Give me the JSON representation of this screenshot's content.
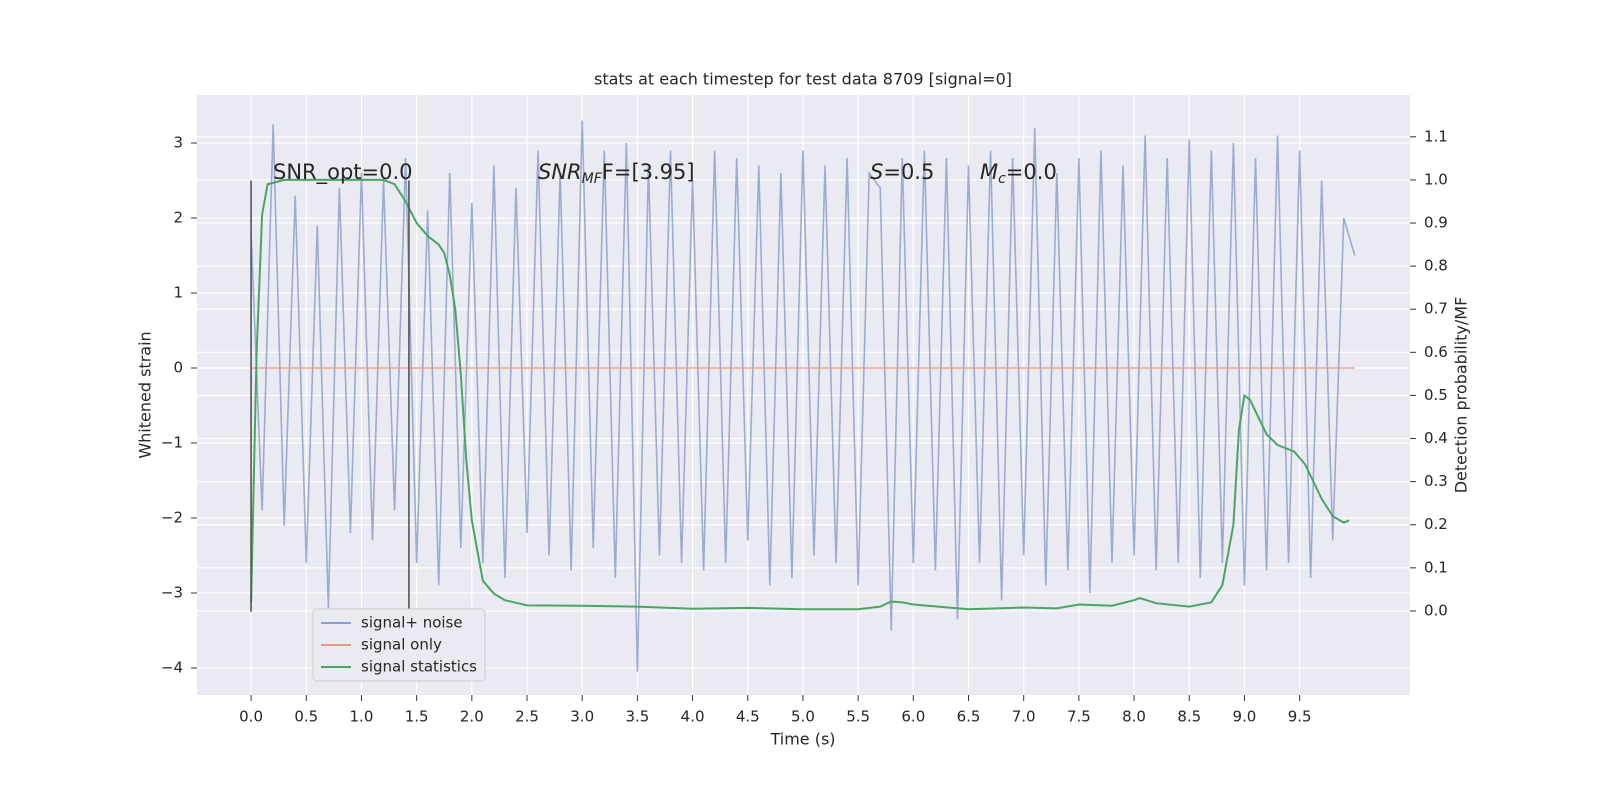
{
  "chart_data": {
    "type": "line",
    "title": "stats at each timestep for test data 8709 [signal=0]",
    "x_label": "Time (s)",
    "y_label": "Whitened strain",
    "y2_label": "Detection probability/MF",
    "xlim": [
      -0.49,
      10.5
    ],
    "ylim": [
      -4.36,
      3.64
    ],
    "y2lim": [
      -0.195,
      1.197
    ],
    "xticks": [
      {
        "value": 0,
        "label": "0.0"
      },
      {
        "value": 0.5,
        "label": "0.5"
      },
      {
        "value": 1,
        "label": "1.0"
      },
      {
        "value": 1.5,
        "label": "1.5"
      },
      {
        "value": 2,
        "label": "2.0"
      },
      {
        "value": 2.5,
        "label": "2.5"
      },
      {
        "value": 3,
        "label": "3.0"
      },
      {
        "value": 3.5,
        "label": "3.5"
      },
      {
        "value": 4,
        "label": "4.0"
      },
      {
        "value": 4.5,
        "label": "4.5"
      },
      {
        "value": 5,
        "label": "5.0"
      },
      {
        "value": 5.5,
        "label": "5.5"
      },
      {
        "value": 6,
        "label": "6.0"
      },
      {
        "value": 6.5,
        "label": "6.5"
      },
      {
        "value": 7,
        "label": "7.0"
      },
      {
        "value": 7.5,
        "label": "7.5"
      },
      {
        "value": 8,
        "label": "8.0"
      },
      {
        "value": 8.5,
        "label": "8.5"
      },
      {
        "value": 9,
        "label": "9.0"
      },
      {
        "value": 9.5,
        "label": "9.5"
      }
    ],
    "yticks": [
      {
        "value": -4,
        "label": "−4"
      },
      {
        "value": -3,
        "label": "−3"
      },
      {
        "value": -2,
        "label": "−2"
      },
      {
        "value": -1,
        "label": "−1"
      },
      0,
      1,
      2,
      3
    ],
    "y2ticks": [
      {
        "value": 0,
        "label": "0.0"
      },
      {
        "value": 0.1,
        "label": "0.1"
      },
      {
        "value": 0.2,
        "label": "0.2"
      },
      {
        "value": 0.3,
        "label": "0.3"
      },
      {
        "value": 0.4,
        "label": "0.4"
      },
      {
        "value": 0.5,
        "label": "0.5"
      },
      {
        "value": 0.6,
        "label": "0.6"
      },
      {
        "value": 0.7,
        "label": "0.7"
      },
      {
        "value": 0.8,
        "label": "0.8"
      },
      {
        "value": 0.9,
        "label": "0.9"
      },
      {
        "value": 1,
        "label": "1.0"
      },
      {
        "value": 1.1,
        "label": "1.1"
      }
    ],
    "grid": true,
    "legend": "lower left",
    "series": [
      {
        "name": "signal+ noise",
        "color": "#8da0cb",
        "x": [
          0,
          0.1,
          0.2,
          0.3,
          0.4,
          0.5,
          0.6,
          0.7,
          0.8,
          0.9,
          1,
          1.1,
          1.2,
          1.3,
          1.4,
          1.5,
          1.6,
          1.7,
          1.8,
          1.9,
          2,
          2.1,
          2.2,
          2.3,
          2.4,
          2.5,
          2.6,
          2.7,
          2.8,
          2.9,
          3,
          3.1,
          3.2,
          3.3,
          3.4,
          3.5,
          3.6,
          3.7,
          3.8,
          3.9,
          4,
          4.1,
          4.2,
          4.3,
          4.4,
          4.5,
          4.6,
          4.7,
          4.8,
          4.9,
          5,
          5.1,
          5.2,
          5.3,
          5.4,
          5.5,
          5.6,
          5.7,
          5.8,
          5.9,
          6,
          6.1,
          6.2,
          6.3,
          6.4,
          6.5,
          6.6,
          6.7,
          6.8,
          6.9,
          7,
          7.1,
          7.2,
          7.3,
          7.4,
          7.5,
          7.6,
          7.7,
          7.8,
          7.9,
          8,
          8.1,
          8.2,
          8.3,
          8.4,
          8.5,
          8.6,
          8.7,
          8.8,
          8.9,
          9,
          9.1,
          9.2,
          9.3,
          9.4,
          9.5,
          9.6,
          9.7,
          9.8,
          9.9,
          10
        ],
        "values": [
          1.8,
          -1.9,
          3.25,
          -2.1,
          2.3,
          -2.6,
          1.9,
          -3.2,
          2.4,
          -2.2,
          2.6,
          -2.3,
          2.5,
          -1.9,
          2.8,
          -2.6,
          2.1,
          -2.9,
          2.6,
          -2.4,
          2.2,
          -2.6,
          2.7,
          -2.8,
          2.4,
          -2.2,
          2.9,
          -2.5,
          2.6,
          -2.7,
          3.3,
          -2.4,
          2.9,
          -2.8,
          3.0,
          -4.05,
          2.7,
          -2.5,
          2.9,
          -2.6,
          2.5,
          -2.7,
          2.9,
          -2.6,
          2.8,
          -2.3,
          2.7,
          -2.9,
          2.6,
          -2.8,
          2.9,
          -2.5,
          2.7,
          -2.6,
          2.8,
          -2.9,
          2.6,
          2.4,
          -3.5,
          2.8,
          -2.6,
          2.9,
          -2.7,
          2.8,
          -3.35,
          2.7,
          -2.6,
          2.9,
          -3.1,
          2.8,
          -2.5,
          3.2,
          -2.9,
          2.6,
          -2.7,
          2.8,
          -3.0,
          2.9,
          -2.6,
          2.7,
          -2.5,
          3.1,
          -2.7,
          2.8,
          -2.6,
          3.05,
          -2.8,
          2.9,
          -2.6,
          3.0,
          -2.9,
          2.8,
          -2.7,
          3.1,
          -2.6,
          2.9,
          -2.8,
          2.5,
          -2.3,
          2.0,
          1.5
        ]
      },
      {
        "name": "signal only",
        "color": "#e9967a",
        "x": [
          0,
          10
        ],
        "values": [
          0,
          0
        ]
      },
      {
        "name": "signal statistics",
        "color": "#4aa564",
        "axis": "y2",
        "x": [
          0,
          0.05,
          0.1,
          0.15,
          0.3,
          0.5,
          1,
          1.2,
          1.3,
          1.4,
          1.5,
          1.6,
          1.7,
          1.75,
          1.8,
          1.85,
          1.9,
          1.95,
          2,
          2.1,
          2.2,
          2.3,
          2.5,
          3,
          3.5,
          4,
          4.5,
          5,
          5.5,
          5.7,
          5.8,
          5.9,
          6,
          6.5,
          7,
          7.3,
          7.5,
          7.8,
          8,
          8.05,
          8.2,
          8.5,
          8.7,
          8.8,
          8.9,
          8.95,
          9,
          9.05,
          9.2,
          9.3,
          9.45,
          9.55,
          9.7,
          9.8,
          9.9,
          9.95
        ],
        "values": [
          0.02,
          0.6,
          0.92,
          0.99,
          1.0,
          1.0,
          1.0,
          1.0,
          0.99,
          0.95,
          0.9,
          0.87,
          0.85,
          0.83,
          0.78,
          0.7,
          0.55,
          0.35,
          0.21,
          0.07,
          0.04,
          0.025,
          0.013,
          0.012,
          0.01,
          0.005,
          0.007,
          0.004,
          0.004,
          0.01,
          0.022,
          0.02,
          0.015,
          0.004,
          0.008,
          0.006,
          0.015,
          0.012,
          0.025,
          0.03,
          0.018,
          0.01,
          0.02,
          0.06,
          0.2,
          0.42,
          0.5,
          0.49,
          0.41,
          0.385,
          0.37,
          0.34,
          0.26,
          0.22,
          0.205,
          0.21
        ]
      }
    ],
    "vlines": {
      "x": [
        0,
        1.43
      ],
      "ymin": -3.25,
      "ymax": 2.5,
      "color": "#555555"
    },
    "annotations": [
      {
        "text": "SNR_opt=0.0"
      },
      {
        "text": "SNR",
        "sub": "MF",
        "tail": "F=[3.95]",
        "italic": true
      },
      {
        "text": "S",
        "tail": "=0.5",
        "italic": true
      },
      {
        "text": "M",
        "sub": "c",
        "tail": "=0.0",
        "italic": true
      }
    ]
  }
}
